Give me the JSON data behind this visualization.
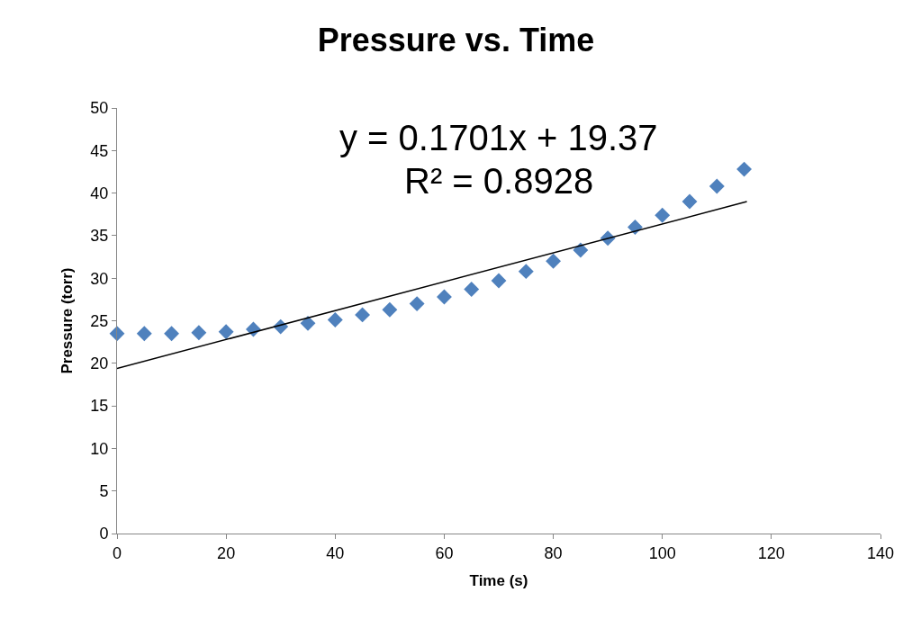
{
  "chart_data": {
    "type": "scatter",
    "title": "Pressure vs. Time",
    "xlabel": "Time (s)",
    "ylabel": "Pressure (torr)",
    "annotations": [
      "y = 0.1701x + 19.37",
      "R² = 0.8928"
    ],
    "series": [
      {
        "color": "#4f81bd",
        "marker": "diamond",
        "x": [
          0,
          5,
          10,
          15,
          20,
          25,
          30,
          35,
          40,
          45,
          50,
          55,
          60,
          65,
          70,
          75,
          80,
          85,
          90,
          95,
          100,
          105,
          110,
          115
        ],
        "values": [
          23.5,
          23.5,
          23.5,
          23.6,
          23.7,
          24.0,
          24.3,
          24.7,
          25.1,
          25.7,
          26.3,
          27.0,
          27.8,
          28.7,
          29.7,
          30.8,
          32.0,
          33.3,
          34.7,
          36.0,
          37.4,
          39.0,
          40.8,
          42.8
        ]
      },
      {
        "type": "line",
        "color": "#000000",
        "marker": "none",
        "x": [
          0,
          115.5
        ],
        "values": [
          19.4,
          39.0
        ]
      }
    ],
    "xlim": [
      0,
      140
    ],
    "xticks": [
      0,
      20,
      40,
      60,
      80,
      100,
      120,
      140
    ],
    "ylim": [
      0,
      50
    ],
    "yticks": [
      0,
      5,
      10,
      15,
      20,
      25,
      30,
      35,
      40,
      45,
      50
    ]
  }
}
